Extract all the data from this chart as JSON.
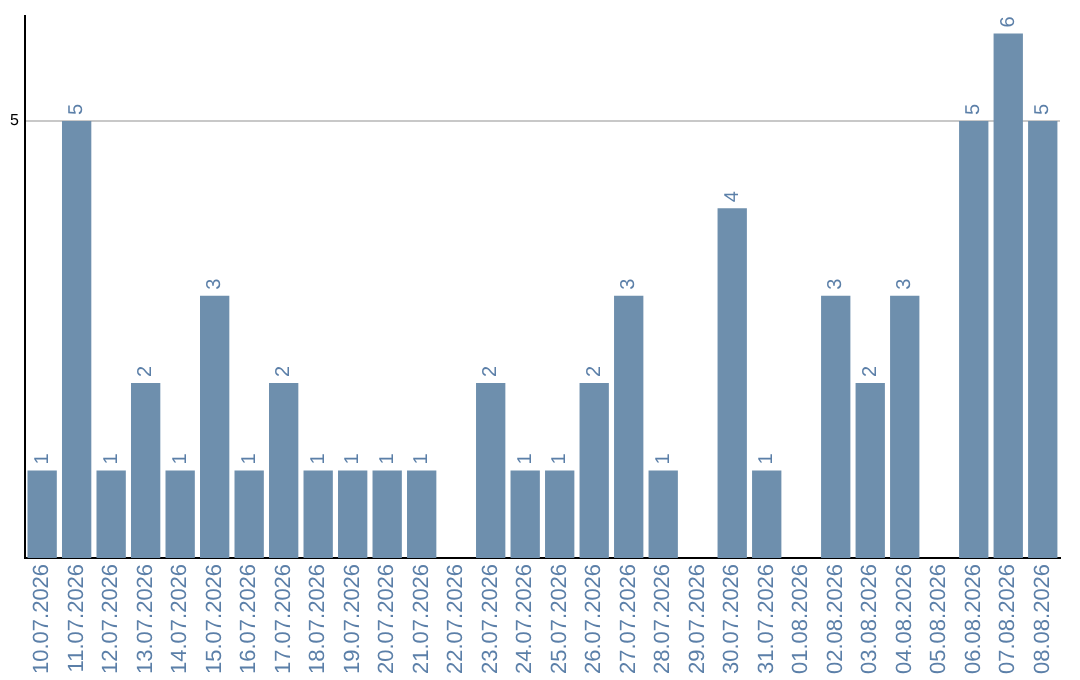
{
  "chart_data": {
    "type": "bar",
    "categories": [
      "10.07.2026",
      "11.07.2026",
      "12.07.2026",
      "13.07.2026",
      "14.07.2026",
      "15.07.2026",
      "16.07.2026",
      "17.07.2026",
      "18.07.2026",
      "19.07.2026",
      "20.07.2026",
      "21.07.2026",
      "22.07.2026",
      "23.07.2026",
      "24.07.2026",
      "25.07.2026",
      "26.07.2026",
      "27.07.2026",
      "28.07.2026",
      "29.07.2026",
      "30.07.2026",
      "31.07.2026",
      "01.08.2026",
      "02.08.2026",
      "03.08.2026",
      "04.08.2026",
      "05.08.2026",
      "06.08.2026",
      "07.08.2026",
      "08.08.2026"
    ],
    "values": [
      1,
      5,
      1,
      2,
      1,
      3,
      1,
      2,
      1,
      1,
      1,
      1,
      0,
      2,
      1,
      1,
      2,
      3,
      1,
      0,
      4,
      1,
      0,
      3,
      2,
      3,
      0,
      5,
      6,
      5
    ],
    "value_labels": [
      "1",
      "5",
      "1",
      "2",
      "1",
      "3",
      "1",
      "2",
      "1",
      "1",
      "1",
      "1",
      null,
      "2",
      "1",
      "1",
      "2",
      "3",
      "1",
      null,
      "4",
      "1",
      null,
      "3",
      "2",
      "3",
      null,
      "5",
      "6",
      "5"
    ],
    "color": "#6e8fad",
    "ylim": [
      0,
      6.2
    ],
    "yticks": [
      5
    ],
    "grid": "y"
  }
}
